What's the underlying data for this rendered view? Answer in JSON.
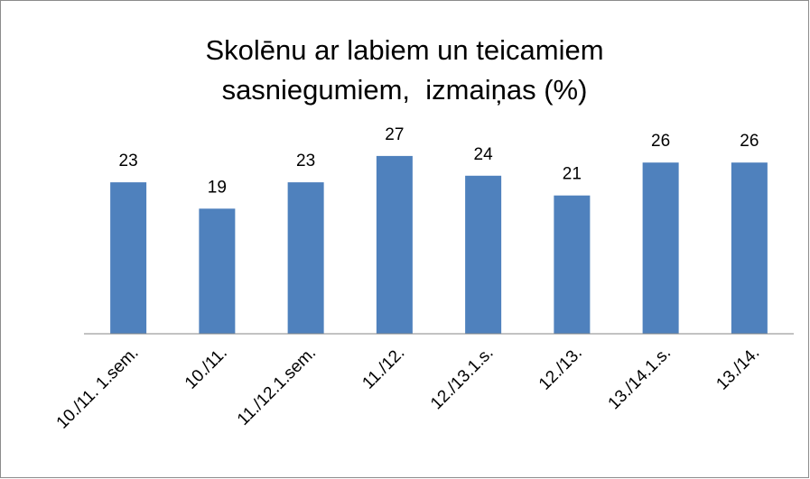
{
  "chart_data": {
    "type": "bar",
    "title": [
      "Skolēnu ar labiem un teicamiem",
      "sasniegumiem,  izmaiņas (%)"
    ],
    "categories": [
      "10./11. 1.sem.",
      "10./11.",
      "11./12.1.sem.",
      "11./12.",
      "12./13.1.s.",
      "12./13.",
      "13./14.1.s.",
      "13./14."
    ],
    "values": [
      23,
      19,
      23,
      27,
      24,
      21,
      26,
      26
    ],
    "color": "#4f81bd",
    "ylim": [
      0,
      30
    ]
  }
}
